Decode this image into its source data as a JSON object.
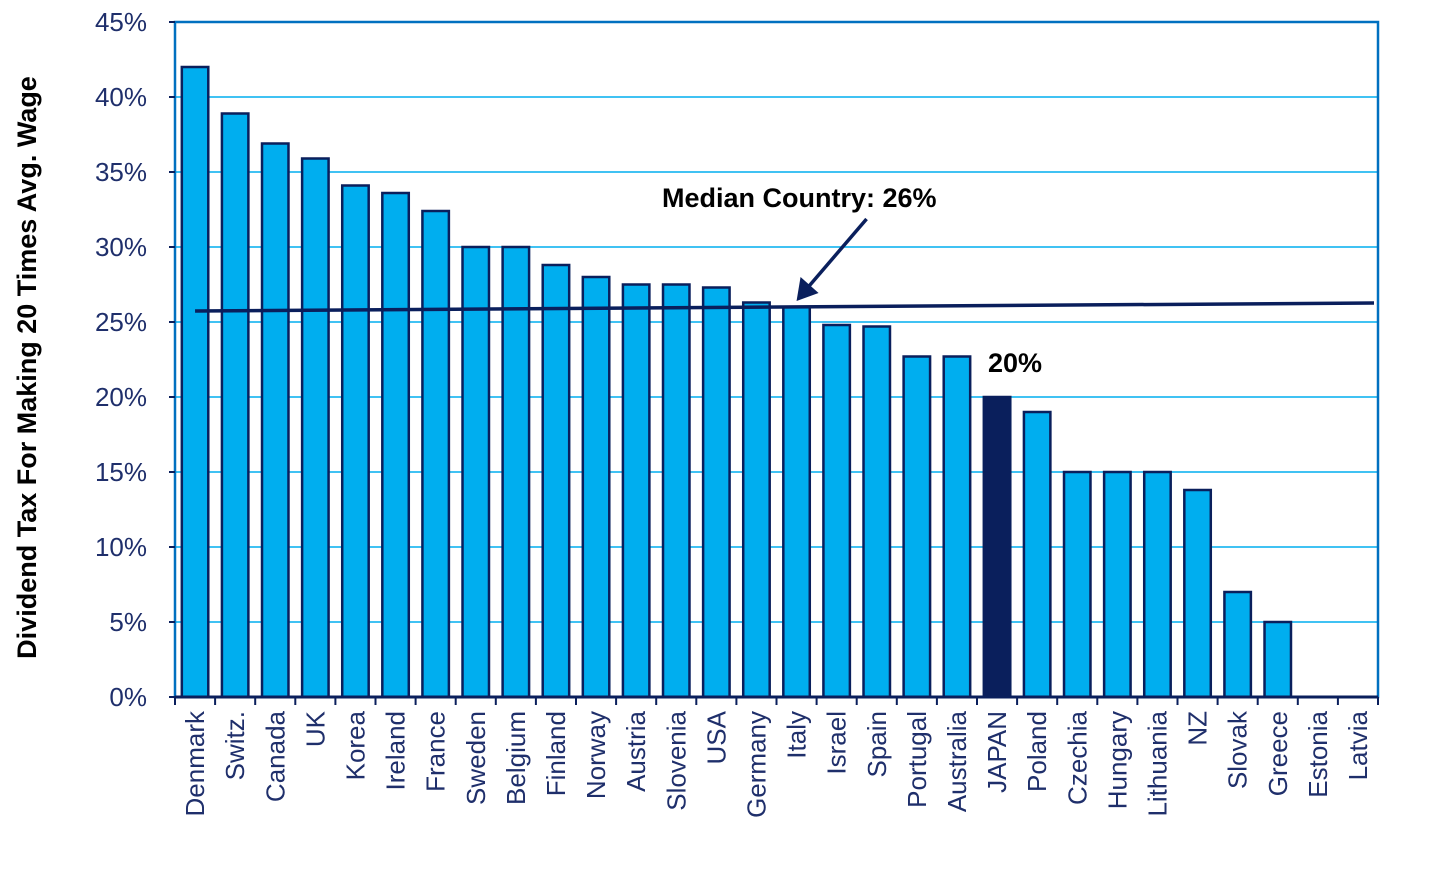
{
  "chart_data": {
    "type": "bar",
    "title": "",
    "xlabel": "",
    "ylabel": "Dividend Tax For Making 20 Times Avg.  Wage",
    "ylim": [
      0,
      45
    ],
    "yticks": [
      0,
      5,
      10,
      15,
      20,
      25,
      30,
      35,
      40,
      45
    ],
    "ytick_labels": [
      "0%",
      "5%",
      "10%",
      "15%",
      "20%",
      "25%",
      "30%",
      "35%",
      "40%",
      "45%"
    ],
    "grid": true,
    "categories": [
      "Denmark",
      "Switz.",
      "Canada",
      "UK",
      "Korea",
      "Ireland",
      "France",
      "Sweden",
      "Belgium",
      "Finland",
      "Norway",
      "Austria",
      "Slovenia",
      "USA",
      "Germany",
      "Italy",
      "Israel",
      "Spain",
      "Portugal",
      "Australia",
      "JAPAN",
      "Poland",
      "Czechia",
      "Hungary",
      "Lithuania",
      "NZ",
      "Slovak",
      "Greece",
      "Estonia",
      "Latvia"
    ],
    "values": [
      42,
      38.9,
      36.9,
      35.9,
      34.1,
      33.6,
      32.4,
      30,
      30,
      28.8,
      28,
      27.5,
      27.5,
      27.3,
      26.3,
      26,
      24.8,
      24.7,
      22.7,
      22.7,
      20,
      19,
      15,
      15,
      15,
      13.8,
      7,
      5,
      0,
      0
    ],
    "highlight_category": "JAPAN",
    "bar_color": "#00aeef",
    "highlight_color": "#0a1f5c",
    "bar_edge_color": "#0a1f5c",
    "median_value": 26,
    "annotations": {
      "median": "Median Country: 26%",
      "highlight": "20%"
    }
  }
}
